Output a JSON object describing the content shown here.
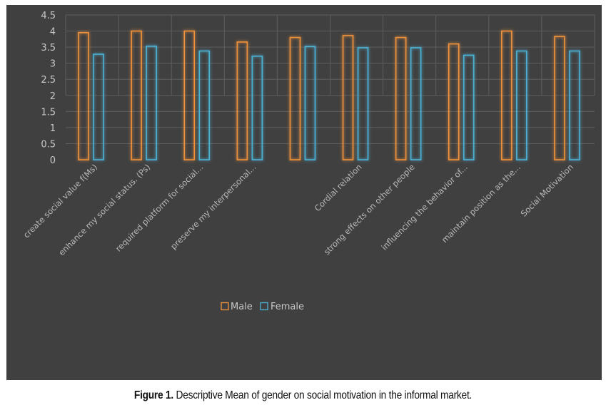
{
  "chart_data": {
    "type": "bar",
    "title": "",
    "xlabel": "",
    "ylabel": "",
    "ylim": [
      0,
      4.5
    ],
    "yticks": [
      "0",
      "0.5",
      "1",
      "1.5",
      "2",
      "2.5",
      "3",
      "3.5",
      "4",
      "4.5"
    ],
    "grid": true,
    "legend_position": "bottom-center",
    "categories": [
      "create social value f(Ms)",
      "enhance my social status. (Ps)",
      "required platform for social...",
      "preserve my interpersonal...",
      "Cordial relation",
      "strong effects on other people",
      "influencing the behavior of...",
      "maintain  position as the...",
      "Social Motivation"
    ],
    "category_slots": [
      "create social value f(Ms)",
      "enhance my social status. (Ps)",
      "required platform for social...",
      "preserve my interpersonal...",
      "",
      "Cordial relation",
      "strong effects on other people",
      "influencing the behavior of...",
      "maintain  position as the...",
      "Social Motivation"
    ],
    "series": [
      {
        "name": "Male",
        "color": "#f0923a",
        "values": [
          3.95,
          4.0,
          4.0,
          3.66,
          3.8,
          3.86,
          3.8,
          3.6,
          4.0,
          3.83
        ]
      },
      {
        "name": "Female",
        "color": "#4bb3d6",
        "values": [
          3.28,
          3.53,
          3.38,
          3.22,
          3.52,
          3.48,
          3.48,
          3.25,
          3.38,
          3.38
        ]
      }
    ]
  },
  "legend": {
    "male_label": "Male",
    "female_label": "Female"
  },
  "caption": {
    "label": "Figure 1.",
    "text": " Descriptive Mean of gender on social motivation in the informal market."
  },
  "colors": {
    "background": "#404040",
    "grid": "#5e5e5e",
    "male": "#f0923a",
    "female": "#4bb3d6"
  }
}
